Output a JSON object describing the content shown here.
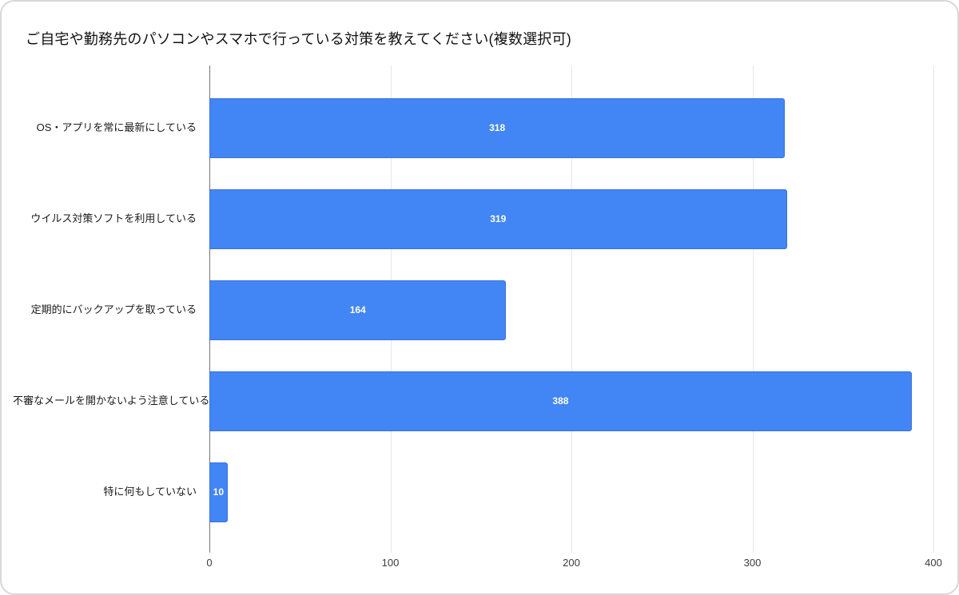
{
  "chart_data": {
    "type": "bar",
    "orientation": "horizontal",
    "title": "ご自宅や勤務先のパソコンやスマホで行っている対策を教えてください(複数選択可)",
    "categories": [
      "OS・アプリを常に最新にしている",
      "ウイルス対策ソフトを利用している",
      "定期的にバックアップを取っている",
      "不審なメールを開かないよう注意している",
      "特に何もしていない"
    ],
    "values": [
      318,
      319,
      164,
      388,
      10
    ],
    "value_labels": [
      "318",
      "319",
      "164",
      "388",
      "10"
    ],
    "xlabel": "",
    "ylabel": "",
    "xlim": [
      0,
      400
    ],
    "xticks": [
      0,
      100,
      200,
      300,
      400
    ],
    "xtick_labels": [
      "0",
      "100",
      "200",
      "300",
      "400"
    ],
    "grid": true,
    "legend": "none",
    "colors": {
      "bar_fill": "#4285f4",
      "bar_stroke": "#3b72dd",
      "value_label": "#ffffff",
      "gridline": "#e6e6e6",
      "axis_line": "#757575",
      "tick_label": "#3c3c3c",
      "category_label": "#1a1a1a",
      "card_border": "#d8d8d8"
    }
  }
}
